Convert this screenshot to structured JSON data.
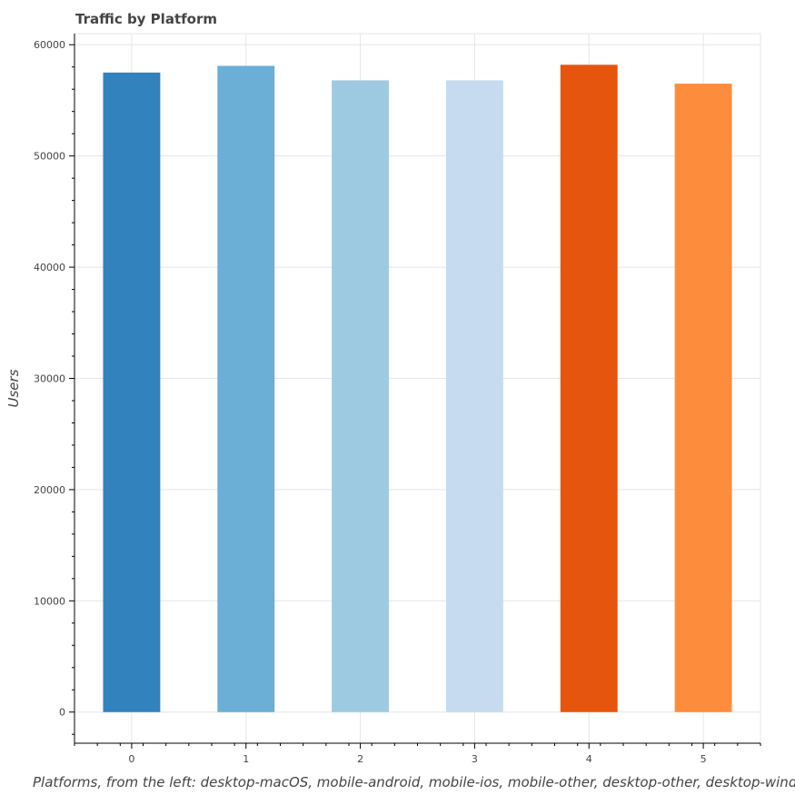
{
  "chart_data": {
    "type": "bar",
    "title": "Traffic by Platform",
    "xlabel": "Platforms, from the left: desktop-macOS, mobile-android, mobile-ios, mobile-other, desktop-other, desktop-windows",
    "ylabel": "Users",
    "categories": [
      "0",
      "1",
      "2",
      "3",
      "4",
      "5"
    ],
    "values": [
      57500,
      58100,
      56800,
      56800,
      58200,
      56500
    ],
    "colors": [
      "#3182bd",
      "#6baed6",
      "#9ecae1",
      "#c6dbef",
      "#e6550d",
      "#fd8d3c"
    ],
    "ylim": [
      -2800,
      61000
    ],
    "xlim": [
      -0.5,
      5.5
    ],
    "yticks": [
      0,
      10000,
      20000,
      30000,
      40000,
      50000,
      60000
    ],
    "grid": true
  }
}
